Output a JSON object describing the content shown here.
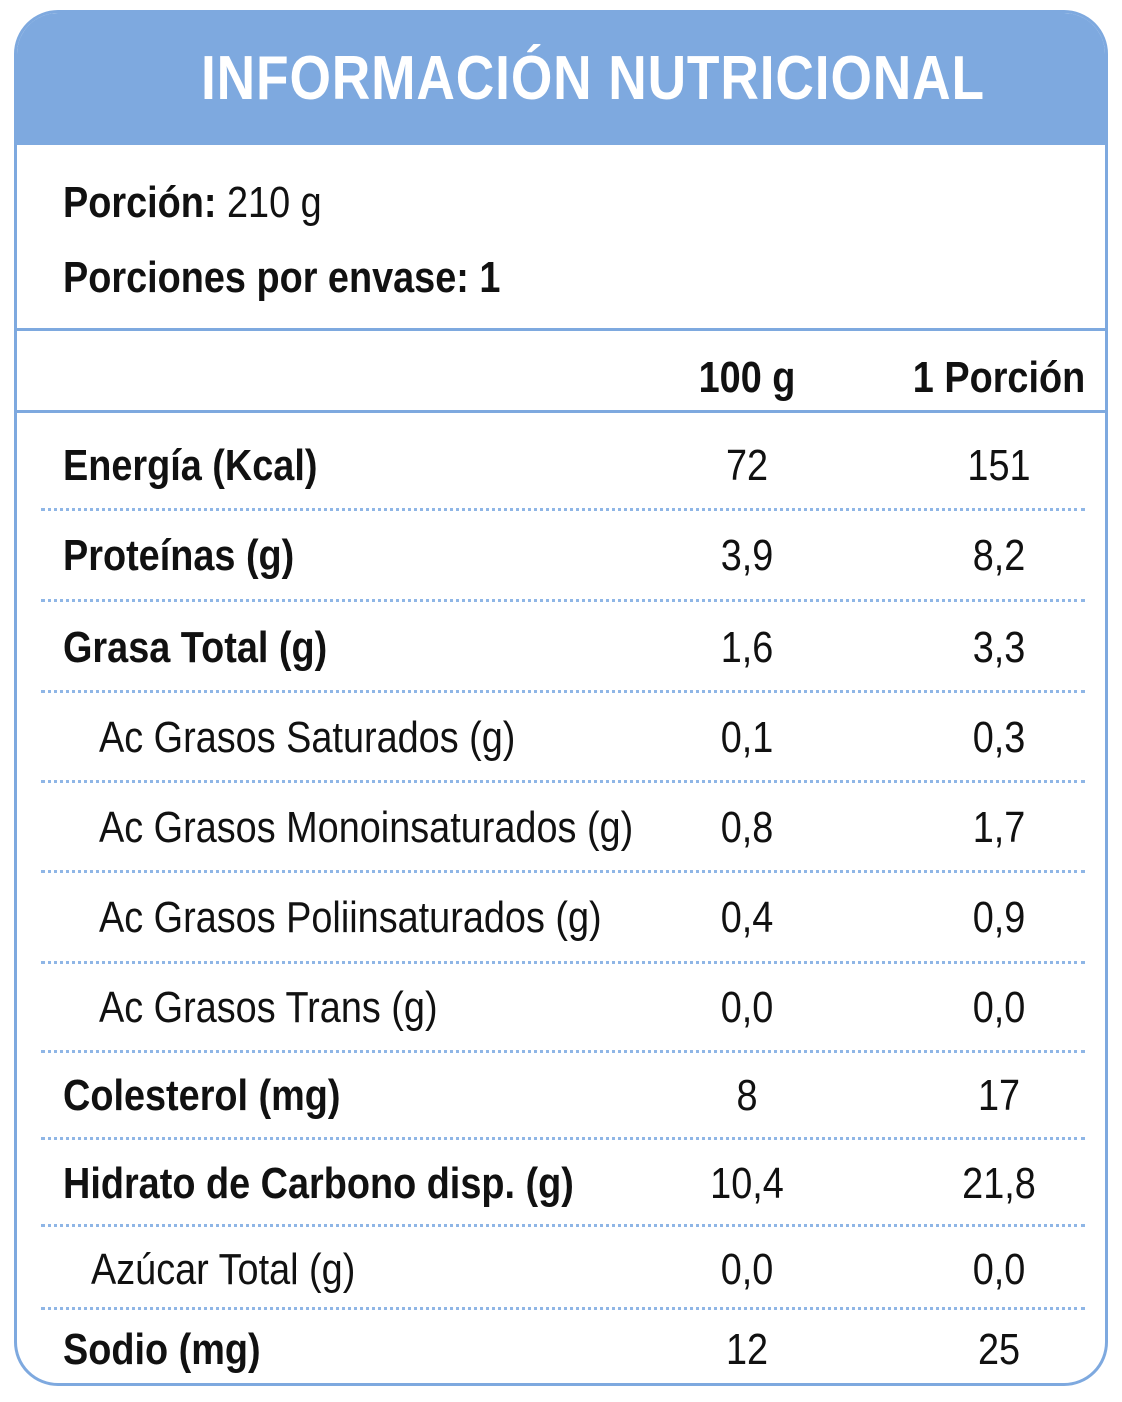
{
  "title": "INFORMACIÓN NUTRICIONAL",
  "serving": {
    "size_label": "Porción:",
    "size_value": "210 g",
    "per_pack_label": "Porciones por envase:",
    "per_pack_value": "1"
  },
  "columns": {
    "per_100": "100 g",
    "per_portion": "1 Porción"
  },
  "rows": [
    {
      "name": "Energía (Kcal)",
      "per_100": "72",
      "per_portion": "151",
      "bold": true
    },
    {
      "name": "Proteínas (g)",
      "per_100": "3,9",
      "per_portion": "8,2",
      "bold": true
    },
    {
      "name": "Grasa Total (g)",
      "per_100": "1,6",
      "per_portion": "3,3",
      "bold": true
    },
    {
      "name": "Ac Grasos Saturados (g)",
      "per_100": "0,1",
      "per_portion": "0,3",
      "bold": false
    },
    {
      "name": "Ac Grasos Monoinsaturados (g)",
      "per_100": "0,8",
      "per_portion": "1,7",
      "bold": false
    },
    {
      "name": "Ac Grasos Poliinsaturados (g)",
      "per_100": "0,4",
      "per_portion": "0,9",
      "bold": false
    },
    {
      "name": "Ac Grasos Trans (g)",
      "per_100": "0,0",
      "per_portion": "0,0",
      "bold": false
    },
    {
      "name": "Colesterol (mg)",
      "per_100": "8",
      "per_portion": "17",
      "bold": true
    },
    {
      "name": "Hidrato de Carbono disp. (g)",
      "per_100": "10,4",
      "per_portion": "21,8",
      "bold": true
    },
    {
      "name": "Azúcar Total (g)",
      "per_100": "0,0",
      "per_portion": "0,0",
      "bold": false
    },
    {
      "name": "Sodio (mg)",
      "per_100": "12",
      "per_portion": "25",
      "bold": true
    }
  ],
  "colors": {
    "accent": "#7ea9df",
    "dotted_rule": "#8fb6e6",
    "text": "#111111"
  }
}
